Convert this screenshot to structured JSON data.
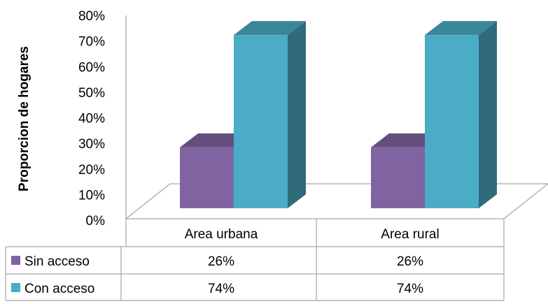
{
  "chart_data": {
    "type": "bar",
    "style": "3d-clustered-column-with-data-table",
    "title": "",
    "xlabel": "",
    "ylabel": "Proporcion de hogares",
    "ylim": [
      0,
      0.8
    ],
    "y_ticks": [
      "0%",
      "10%",
      "20%",
      "30%",
      "40%",
      "50%",
      "60%",
      "70%",
      "80%"
    ],
    "categories": [
      "Area urbana",
      "Area rural"
    ],
    "series": [
      {
        "name": "Sin acceso",
        "values": [
          0.26,
          0.26
        ],
        "labels": [
          "26%",
          "26%"
        ],
        "color": "#8064A2"
      },
      {
        "name": "Con acceso",
        "values": [
          0.74,
          0.74
        ],
        "labels": [
          "74%",
          "74%"
        ],
        "color": "#4BACC6"
      }
    ],
    "grid": false,
    "legend": "data-table"
  }
}
